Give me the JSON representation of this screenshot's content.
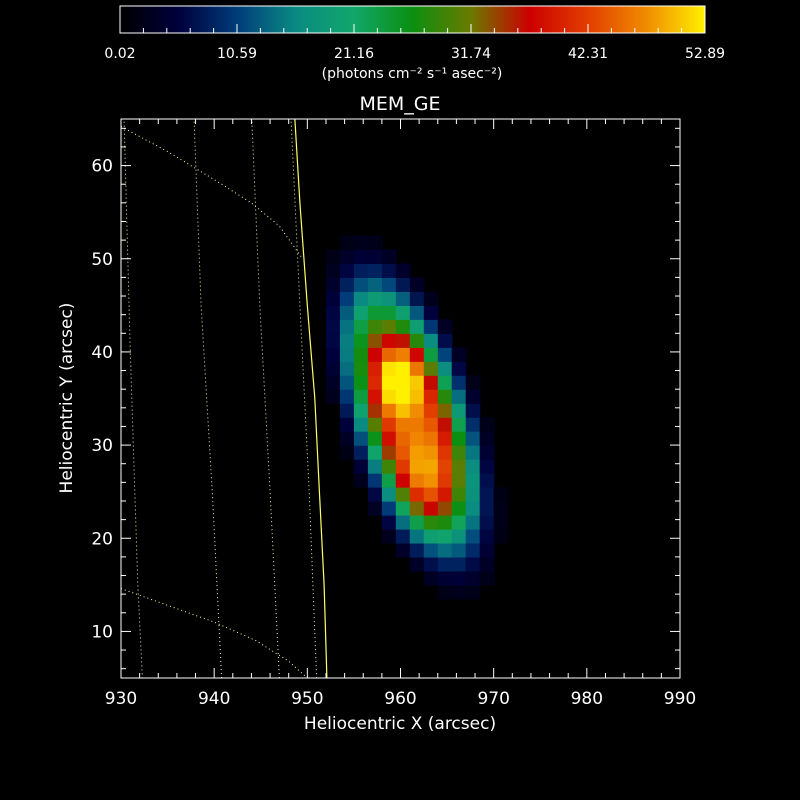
{
  "chart_data": {
    "type": "heatmap",
    "title": "MEM_GE",
    "xlabel": "Heliocentric X (arcsec)",
    "ylabel": "Heliocentric Y (arcsec)",
    "xlim": [
      930,
      990
    ],
    "ylim": [
      5,
      65
    ],
    "x_ticks": [
      930,
      940,
      950,
      960,
      970,
      980,
      990
    ],
    "y_ticks": [
      10,
      20,
      30,
      40,
      50,
      60
    ],
    "grid": false,
    "colorbar": {
      "range": [
        0.02,
        52.89
      ],
      "tick_labels": [
        "0.02",
        "10.59",
        "21.16",
        "31.74",
        "42.31",
        "52.89"
      ],
      "unit_label": "(photons cm⁻² s⁻¹ asec⁻²)",
      "position": "top",
      "colormap": [
        "#000000",
        "#00003c",
        "#003c7a",
        "#0a8a82",
        "#11a76a",
        "#0b8f10",
        "#6b7a00",
        "#cc0000",
        "#e23e00",
        "#f08c00",
        "#fff000"
      ]
    },
    "source_peak": {
      "x": 960,
      "y": 37,
      "value": 52.89
    },
    "source_extent_x": [
      953,
      970
    ],
    "source_extent_y": [
      15,
      50
    ],
    "overlay": {
      "limb_color": "#ffff66",
      "grid_line_color": "#ffff99"
    }
  }
}
